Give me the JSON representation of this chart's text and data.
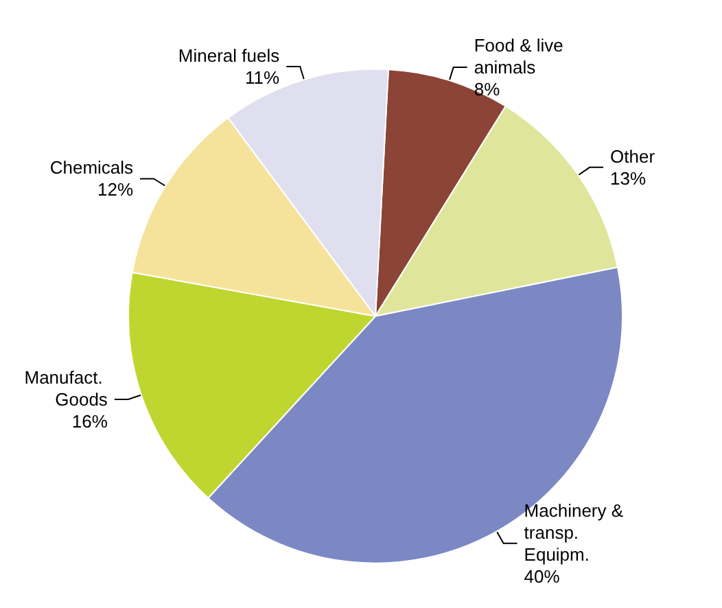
{
  "chart_data": {
    "type": "pie",
    "categories": [
      "Food & live animals",
      "Other",
      "Machinery & transp. Equipm.",
      "Manufact. Goods",
      "Chemicals",
      "Mineral fuels"
    ],
    "values": [
      8,
      13,
      40,
      16,
      12,
      11
    ],
    "value_labels": [
      "8%",
      "13%",
      "40%",
      "16%",
      "12%",
      "11%"
    ],
    "colors": [
      "#8b4436",
      "#dfe69b",
      "#7b88c4",
      "#bfd630",
      "#f5e39b",
      "#dfdff0"
    ]
  }
}
